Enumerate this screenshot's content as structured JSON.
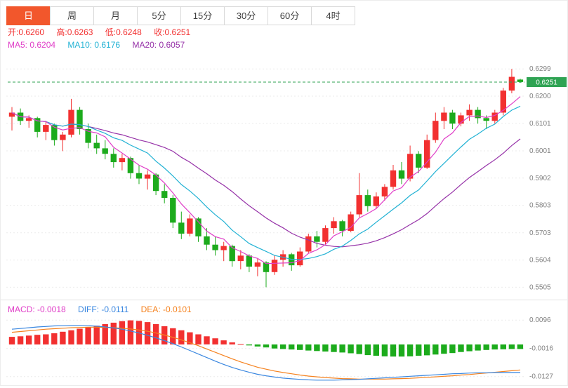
{
  "widget": {
    "tabs": [
      {
        "label": "日",
        "active": true
      },
      {
        "label": "周",
        "active": false
      },
      {
        "label": "月",
        "active": false
      },
      {
        "label": "5分",
        "active": false
      },
      {
        "label": "15分",
        "active": false
      },
      {
        "label": "30分",
        "active": false
      },
      {
        "label": "60分",
        "active": false
      },
      {
        "label": "4时",
        "active": false
      }
    ],
    "ohlc_labels": {
      "open": "开:0.6260",
      "high": "高:0.6263",
      "low": "低:0.6248",
      "close": "收:0.6251"
    },
    "ma_labels": {
      "ma5": "MA5: 0.6204",
      "ma10": "MA10: 0.6176",
      "ma20": "MA20: 0.6057"
    },
    "macd_labels": {
      "macd": "MACD: -0.0018",
      "diff": "DIFF: -0.0111",
      "dea": "DEA: -0.0101"
    }
  },
  "colors": {
    "up": "#f23030",
    "down": "#1cab1c",
    "ma5": "#e03fc8",
    "ma10": "#22b2d4",
    "ma20": "#9632a8",
    "diff": "#3a87e0",
    "dea": "#f5821f",
    "active_tab": "#f2572c",
    "current_price": "#2fa353",
    "axis_text": "#808080",
    "grid": "#ebebeb"
  },
  "chart_data": [
    {
      "type": "candlestick",
      "timeframe": "日",
      "ohlc": {
        "open": 0.626,
        "high": 0.6263,
        "low": 0.6248,
        "close": 0.6251
      },
      "ma_values": {
        "ma5": 0.6204,
        "ma10": 0.6176,
        "ma20": 0.6057
      },
      "current_price": 0.6251,
      "y_ticks": [
        0.6299,
        0.62,
        0.6101,
        0.6001,
        0.5902,
        0.5803,
        0.5703,
        0.5604,
        0.5505
      ],
      "ylim": [
        0.5478,
        0.633
      ],
      "grid": true,
      "candles": [
        [
          0.6125,
          0.616,
          0.6075,
          0.614
        ],
        [
          0.614,
          0.6155,
          0.6095,
          0.611
        ],
        [
          0.611,
          0.613,
          0.6085,
          0.612
        ],
        [
          0.612,
          0.6125,
          0.605,
          0.607
        ],
        [
          0.607,
          0.611,
          0.604,
          0.6095
        ],
        [
          0.6095,
          0.61,
          0.602,
          0.604
        ],
        [
          0.604,
          0.607,
          0.6,
          0.606
        ],
        [
          0.606,
          0.619,
          0.605,
          0.615
        ],
        [
          0.615,
          0.616,
          0.606,
          0.608
        ],
        [
          0.608,
          0.61,
          0.601,
          0.603
        ],
        [
          0.603,
          0.606,
          0.599,
          0.601
        ],
        [
          0.601,
          0.604,
          0.597,
          0.599
        ],
        [
          0.599,
          0.601,
          0.594,
          0.596
        ],
        [
          0.596,
          0.599,
          0.593,
          0.5975
        ],
        [
          0.5975,
          0.598,
          0.59,
          0.592
        ],
        [
          0.592,
          0.595,
          0.588,
          0.59
        ],
        [
          0.59,
          0.593,
          0.586,
          0.5915
        ],
        [
          0.5915,
          0.592,
          0.584,
          0.5855
        ],
        [
          0.5855,
          0.588,
          0.581,
          0.583
        ],
        [
          0.583,
          0.584,
          0.572,
          0.574
        ],
        [
          0.574,
          0.578,
          0.568,
          0.57
        ],
        [
          0.57,
          0.577,
          0.569,
          0.5755
        ],
        [
          0.5755,
          0.576,
          0.567,
          0.569
        ],
        [
          0.569,
          0.572,
          0.564,
          0.566
        ],
        [
          0.566,
          0.569,
          0.562,
          0.564
        ],
        [
          0.564,
          0.567,
          0.56,
          0.5655
        ],
        [
          0.5655,
          0.566,
          0.558,
          0.56
        ],
        [
          0.56,
          0.564,
          0.557,
          0.562
        ],
        [
          0.562,
          0.5625,
          0.556,
          0.558
        ],
        [
          0.558,
          0.561,
          0.5545,
          0.5595
        ],
        [
          0.5595,
          0.56,
          0.5505,
          0.556
        ],
        [
          0.556,
          0.562,
          0.555,
          0.5605
        ],
        [
          0.5605,
          0.564,
          0.558,
          0.5625
        ],
        [
          0.5625,
          0.563,
          0.5565,
          0.5585
        ],
        [
          0.5585,
          0.565,
          0.558,
          0.5635
        ],
        [
          0.5635,
          0.57,
          0.563,
          0.569
        ],
        [
          0.569,
          0.571,
          0.565,
          0.567
        ],
        [
          0.567,
          0.573,
          0.566,
          0.572
        ],
        [
          0.572,
          0.576,
          0.57,
          0.5745
        ],
        [
          0.5745,
          0.575,
          0.569,
          0.571
        ],
        [
          0.571,
          0.578,
          0.5705,
          0.577
        ],
        [
          0.577,
          0.592,
          0.576,
          0.584
        ],
        [
          0.584,
          0.586,
          0.578,
          0.58
        ],
        [
          0.58,
          0.585,
          0.579,
          0.5835
        ],
        [
          0.5835,
          0.588,
          0.582,
          0.587
        ],
        [
          0.587,
          0.595,
          0.586,
          0.593
        ],
        [
          0.593,
          0.596,
          0.588,
          0.59
        ],
        [
          0.59,
          0.602,
          0.589,
          0.599
        ],
        [
          0.599,
          0.6,
          0.592,
          0.594
        ],
        [
          0.594,
          0.606,
          0.5935,
          0.604
        ],
        [
          0.604,
          0.614,
          0.603,
          0.611
        ],
        [
          0.611,
          0.616,
          0.608,
          0.614
        ],
        [
          0.614,
          0.615,
          0.608,
          0.61
        ],
        [
          0.61,
          0.614,
          0.609,
          0.613
        ],
        [
          0.613,
          0.617,
          0.611,
          0.615
        ],
        [
          0.615,
          0.616,
          0.61,
          0.612
        ],
        [
          0.612,
          0.613,
          0.608,
          0.611
        ],
        [
          0.611,
          0.615,
          0.61,
          0.614
        ],
        [
          0.614,
          0.623,
          0.613,
          0.622
        ],
        [
          0.622,
          0.6299,
          0.621,
          0.627
        ],
        [
          0.626,
          0.6263,
          0.6248,
          0.6251
        ]
      ]
    },
    {
      "type": "bar",
      "name": "MACD",
      "values": {
        "macd": -0.0018,
        "diff": -0.0111,
        "dea": -0.0101
      },
      "y_ticks": [
        0.0096,
        -0.0016,
        -0.0127
      ],
      "ylim": [
        -0.015,
        0.0105
      ],
      "histogram": [
        0.003,
        0.0032,
        0.0035,
        0.0038,
        0.004,
        0.0044,
        0.005,
        0.0056,
        0.0062,
        0.0068,
        0.0074,
        0.008,
        0.0086,
        0.0092,
        0.0095,
        0.0093,
        0.0088,
        0.008,
        0.0072,
        0.0064,
        0.0056,
        0.0048,
        0.004,
        0.0032,
        0.0024,
        0.0016,
        0.0008,
        0.0002,
        -0.0004,
        -0.0008,
        -0.0012,
        -0.0016,
        -0.0018,
        -0.002,
        -0.0022,
        -0.0024,
        -0.0026,
        -0.0028,
        -0.003,
        -0.0032,
        -0.0035,
        -0.0038,
        -0.0042,
        -0.0045,
        -0.0047,
        -0.0048,
        -0.0048,
        -0.0047,
        -0.0045,
        -0.0043,
        -0.004,
        -0.0037,
        -0.0034,
        -0.003,
        -0.0027,
        -0.0024,
        -0.0022,
        -0.002,
        -0.0019,
        -0.0018,
        -0.0018
      ],
      "diff_line": [
        0.006,
        0.0063,
        0.0066,
        0.0069,
        0.0071,
        0.0073,
        0.0074,
        0.0075,
        0.0075,
        0.0074,
        0.0072,
        0.0069,
        0.0065,
        0.006,
        0.0053,
        0.0045,
        0.0036,
        0.0026,
        0.0015,
        0.0003,
        -0.001,
        -0.0024,
        -0.0038,
        -0.0052,
        -0.0066,
        -0.0079,
        -0.0091,
        -0.0101,
        -0.011,
        -0.0118,
        -0.0124,
        -0.0129,
        -0.0133,
        -0.0136,
        -0.0138,
        -0.014,
        -0.0141,
        -0.0141,
        -0.0141,
        -0.014,
        -0.0139,
        -0.0138,
        -0.0136,
        -0.0134,
        -0.0132,
        -0.013,
        -0.0128,
        -0.0126,
        -0.0124,
        -0.0122,
        -0.012,
        -0.0118,
        -0.0116,
        -0.0115,
        -0.0113,
        -0.0112,
        -0.0112,
        -0.0111,
        -0.0111,
        -0.0111,
        -0.0111
      ],
      "dea_line": [
        0.0048,
        0.0051,
        0.0054,
        0.0057,
        0.006,
        0.0062,
        0.0064,
        0.0066,
        0.0067,
        0.0068,
        0.0068,
        0.0067,
        0.0066,
        0.0064,
        0.0061,
        0.0057,
        0.0052,
        0.0045,
        0.0037,
        0.0028,
        0.0018,
        0.0007,
        -0.0005,
        -0.0018,
        -0.0031,
        -0.0044,
        -0.0057,
        -0.0069,
        -0.008,
        -0.009,
        -0.0098,
        -0.0105,
        -0.0111,
        -0.0116,
        -0.0121,
        -0.0125,
        -0.0128,
        -0.0131,
        -0.0133,
        -0.0135,
        -0.0136,
        -0.0137,
        -0.0137,
        -0.0137,
        -0.0137,
        -0.0136,
        -0.0135,
        -0.0134,
        -0.0132,
        -0.013,
        -0.0128,
        -0.0126,
        -0.0124,
        -0.0121,
        -0.0119,
        -0.0116,
        -0.0113,
        -0.011,
        -0.0107,
        -0.0104,
        -0.0101
      ]
    }
  ]
}
